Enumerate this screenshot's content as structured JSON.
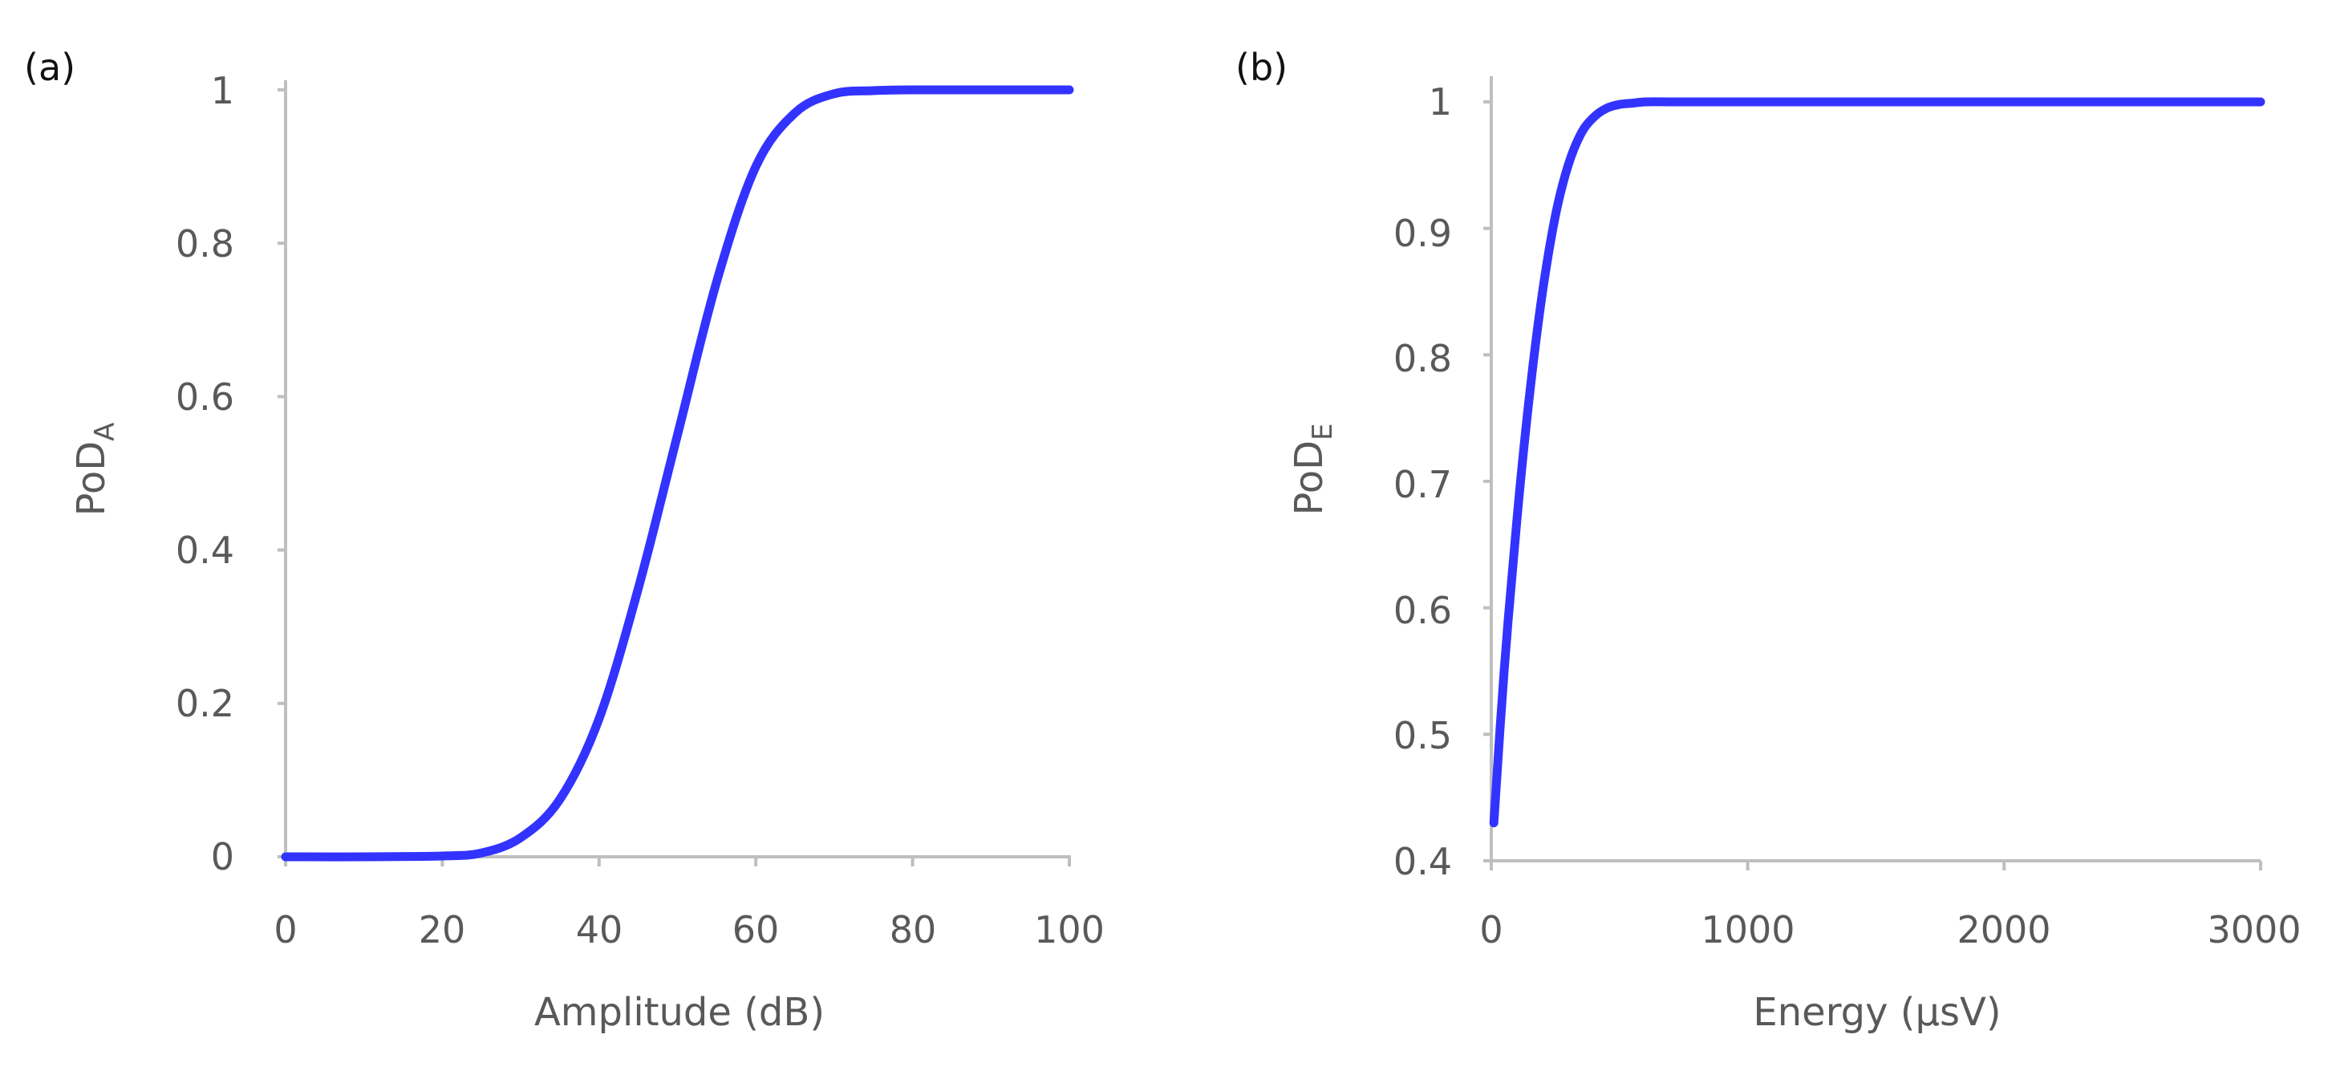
{
  "chart_data": [
    {
      "type": "line",
      "panel_label": "(a)",
      "xlabel": "Amplitude (dB)",
      "ylabel_main": "PoD",
      "ylabel_sub": "A",
      "xlim": [
        0,
        100
      ],
      "ylim": [
        0,
        1
      ],
      "x_ticks": [
        0,
        20,
        40,
        60,
        80,
        100
      ],
      "x_tick_labels": [
        "0",
        "20",
        "40",
        "60",
        "80",
        "100"
      ],
      "y_ticks": [
        0,
        0.2,
        0.4,
        0.6,
        0.8,
        1
      ],
      "y_tick_labels": [
        "0",
        "0.2",
        "0.4",
        "0.6",
        "0.8",
        "1"
      ],
      "series": [
        {
          "name": "PoD_A",
          "color": "#3333ff",
          "x": [
            0,
            10,
            20,
            25,
            30,
            35,
            40,
            45,
            50,
            55,
            60,
            65,
            70,
            75,
            80,
            90,
            100
          ],
          "values": [
            0.0,
            0.0,
            0.001,
            0.005,
            0.025,
            0.075,
            0.18,
            0.35,
            0.55,
            0.75,
            0.9,
            0.97,
            0.995,
            0.999,
            1.0,
            1.0,
            1.0
          ]
        }
      ]
    },
    {
      "type": "line",
      "panel_label": "(b)",
      "xlabel": "Energy (µsV)",
      "ylabel_main": "PoD",
      "ylabel_sub": "E",
      "xlim": [
        0,
        3000
      ],
      "ylim": [
        0.4,
        1
      ],
      "x_ticks": [
        0,
        1000,
        2000,
        3000
      ],
      "x_tick_labels": [
        "0",
        "1000",
        "2000",
        "3000"
      ],
      "y_ticks": [
        0.4,
        0.5,
        0.6,
        0.7,
        0.8,
        0.9,
        1
      ],
      "y_tick_labels": [
        "0.4",
        "0.5",
        "0.6",
        "0.7",
        "0.8",
        "0.9",
        "1"
      ],
      "series": [
        {
          "name": "PoD_E",
          "color": "#3333ff",
          "x": [
            10,
            50,
            100,
            150,
            200,
            250,
            300,
            350,
            400,
            450,
            500,
            550,
            600,
            700,
            800,
            1000,
            1500,
            2000,
            2500,
            3000
          ],
          "values": [
            0.43,
            0.55,
            0.67,
            0.77,
            0.85,
            0.91,
            0.95,
            0.975,
            0.988,
            0.995,
            0.998,
            0.999,
            1.0,
            1.0,
            1.0,
            1.0,
            1.0,
            1.0,
            1.0,
            1.0
          ]
        }
      ]
    }
  ]
}
